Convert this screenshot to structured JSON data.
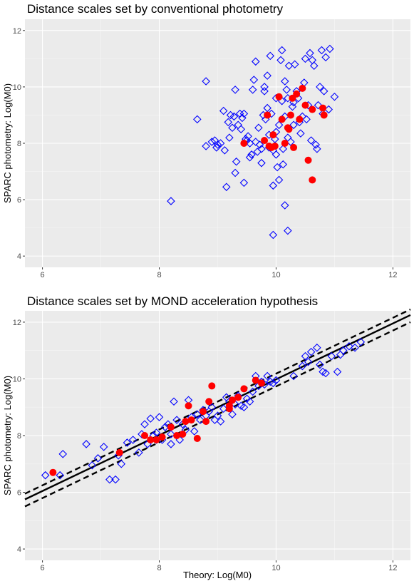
{
  "chart_data": [
    {
      "type": "scatter",
      "title": "Distance scales set by conventional photometry",
      "xlabel": "",
      "ylabel": "SPARC photometry:  Log(M0)",
      "xlim": [
        5.7,
        12.3
      ],
      "ylim": [
        3.6,
        12.4
      ],
      "x_ticks": [
        "6",
        "8",
        "10",
        "12"
      ],
      "y_ticks": [
        "4",
        "6",
        "8",
        "10",
        "12"
      ],
      "grid": true,
      "colors": {
        "diamond": "#0000ff",
        "dot": "#ff0000",
        "panel": "#ebebeb",
        "grid": "#ffffff"
      },
      "series": [
        {
          "marker": "open-diamond",
          "points": [
            [
              8.2,
              5.95
            ],
            [
              8.65,
              8.85
            ],
            [
              8.8,
              10.2
            ],
            [
              8.8,
              7.9
            ],
            [
              8.9,
              8.05
            ],
            [
              8.95,
              8.1
            ],
            [
              8.98,
              7.85
            ],
            [
              9.0,
              7.95
            ],
            [
              9.05,
              8.0
            ],
            [
              9.1,
              9.15
            ],
            [
              9.12,
              7.75
            ],
            [
              9.15,
              6.45
            ],
            [
              9.18,
              8.75
            ],
            [
              9.2,
              8.2
            ],
            [
              9.22,
              9.0
            ],
            [
              9.25,
              8.55
            ],
            [
              9.28,
              8.95
            ],
            [
              9.3,
              9.9
            ],
            [
              9.3,
              6.95
            ],
            [
              9.32,
              7.35
            ],
            [
              9.35,
              8.65
            ],
            [
              9.38,
              9.05
            ],
            [
              9.4,
              8.5
            ],
            [
              9.42,
              8.9
            ],
            [
              9.45,
              9.05
            ],
            [
              9.45,
              6.6
            ],
            [
              9.48,
              8.15
            ],
            [
              9.5,
              8.1
            ],
            [
              9.52,
              8.25
            ],
            [
              9.55,
              8.0
            ],
            [
              9.55,
              7.5
            ],
            [
              9.58,
              7.6
            ],
            [
              9.6,
              9.9
            ],
            [
              9.62,
              10.25
            ],
            [
              9.65,
              10.9
            ],
            [
              9.65,
              8.05
            ],
            [
              9.68,
              7.7
            ],
            [
              9.7,
              8.55
            ],
            [
              9.72,
              7.95
            ],
            [
              9.75,
              7.3
            ],
            [
              9.75,
              7.8
            ],
            [
              9.78,
              9.0
            ],
            [
              9.8,
              10.0
            ],
            [
              9.8,
              9.85
            ],
            [
              9.82,
              8.85
            ],
            [
              9.85,
              10.4
            ],
            [
              9.85,
              9.25
            ],
            [
              9.88,
              8.3
            ],
            [
              9.88,
              7.85
            ],
            [
              9.9,
              11.1
            ],
            [
              9.92,
              9.05
            ],
            [
              9.95,
              7.75
            ],
            [
              9.95,
              6.5
            ],
            [
              9.95,
              4.75
            ],
            [
              9.98,
              8.15
            ],
            [
              10.0,
              9.6
            ],
            [
              10.0,
              8.4
            ],
            [
              10.0,
              7.6
            ],
            [
              10.02,
              7.15
            ],
            [
              10.05,
              8.65
            ],
            [
              10.05,
              6.7
            ],
            [
              10.08,
              10.95
            ],
            [
              10.1,
              11.3
            ],
            [
              10.1,
              9.5
            ],
            [
              10.12,
              7.8
            ],
            [
              10.12,
              7.25
            ],
            [
              10.15,
              10.2
            ],
            [
              10.15,
              8.95
            ],
            [
              10.15,
              5.8
            ],
            [
              10.18,
              9.9
            ],
            [
              10.2,
              9.6
            ],
            [
              10.2,
              8.2
            ],
            [
              10.2,
              4.9
            ],
            [
              10.22,
              10.75
            ],
            [
              10.25,
              8.05
            ],
            [
              10.28,
              9.3
            ],
            [
              10.3,
              9.45
            ],
            [
              10.3,
              8.65
            ],
            [
              10.32,
              10.8
            ],
            [
              10.35,
              9.85
            ],
            [
              10.38,
              9.6
            ],
            [
              10.4,
              8.75
            ],
            [
              10.42,
              8.35
            ],
            [
              10.45,
              8.95
            ],
            [
              10.48,
              10.15
            ],
            [
              10.5,
              11.0
            ],
            [
              10.52,
              8.85
            ],
            [
              10.55,
              9.35
            ],
            [
              10.58,
              11.2
            ],
            [
              10.6,
              8.1
            ],
            [
              10.62,
              10.95
            ],
            [
              10.65,
              10.75
            ],
            [
              10.68,
              7.95
            ],
            [
              10.7,
              7.8
            ],
            [
              10.72,
              9.35
            ],
            [
              10.75,
              10.0
            ],
            [
              10.78,
              11.3
            ],
            [
              10.8,
              9.05
            ],
            [
              10.82,
              9.85
            ],
            [
              10.85,
              11.05
            ],
            [
              10.9,
              9.2
            ],
            [
              10.92,
              11.35
            ],
            [
              11.0,
              9.65
            ]
          ]
        },
        {
          "marker": "filled-dot",
          "points": [
            [
              9.45,
              8.0
            ],
            [
              9.8,
              8.1
            ],
            [
              9.85,
              9.0
            ],
            [
              9.88,
              7.9
            ],
            [
              9.92,
              7.85
            ],
            [
              9.95,
              8.3
            ],
            [
              9.98,
              7.9
            ],
            [
              10.05,
              9.65
            ],
            [
              10.1,
              8.85
            ],
            [
              10.15,
              8.0
            ],
            [
              10.2,
              8.55
            ],
            [
              10.22,
              8.5
            ],
            [
              10.25,
              9.0
            ],
            [
              10.28,
              9.6
            ],
            [
              10.3,
              7.85
            ],
            [
              10.35,
              9.75
            ],
            [
              10.4,
              8.85
            ],
            [
              10.45,
              9.95
            ],
            [
              10.5,
              9.35
            ],
            [
              10.55,
              7.4
            ],
            [
              10.62,
              9.2
            ],
            [
              10.62,
              6.7
            ],
            [
              10.8,
              9.25
            ],
            [
              10.82,
              9.0
            ]
          ]
        }
      ]
    },
    {
      "type": "scatter",
      "title": "Distance scales set by MOND acceleration hypothesis",
      "xlabel": "Theory:  Log(M0)",
      "ylabel": "SPARC photometry:  Log(M0)",
      "xlim": [
        5.7,
        12.3
      ],
      "ylim": [
        3.6,
        12.4
      ],
      "x_ticks": [
        "6",
        "8",
        "10",
        "12"
      ],
      "y_ticks": [
        "4",
        "6",
        "8",
        "10",
        "12"
      ],
      "grid": true,
      "colors": {
        "diamond": "#0000ff",
        "dot": "#ff0000",
        "line": "#000000",
        "panel": "#ebebeb",
        "grid": "#ffffff"
      },
      "lines": [
        {
          "style": "solid",
          "points": [
            [
              5.7,
              5.75
            ],
            [
              12.3,
              12.25
            ]
          ]
        },
        {
          "style": "dashed",
          "points": [
            [
              5.7,
              5.95
            ],
            [
              12.3,
              12.45
            ]
          ]
        },
        {
          "style": "dashed",
          "points": [
            [
              5.7,
              5.5
            ],
            [
              12.3,
              12.0
            ]
          ]
        }
      ],
      "series": [
        {
          "marker": "open-diamond",
          "points": [
            [
              6.05,
              6.6
            ],
            [
              6.3,
              6.6
            ],
            [
              6.35,
              7.35
            ],
            [
              6.75,
              7.7
            ],
            [
              6.85,
              6.95
            ],
            [
              6.95,
              7.2
            ],
            [
              7.05,
              7.6
            ],
            [
              7.15,
              6.45
            ],
            [
              7.25,
              6.45
            ],
            [
              7.3,
              7.3
            ],
            [
              7.35,
              7.0
            ],
            [
              7.45,
              7.75
            ],
            [
              7.55,
              7.85
            ],
            [
              7.65,
              7.4
            ],
            [
              7.7,
              8.05
            ],
            [
              7.75,
              8.4
            ],
            [
              7.8,
              7.7
            ],
            [
              7.85,
              8.6
            ],
            [
              7.9,
              8.0
            ],
            [
              7.95,
              8.1
            ],
            [
              7.95,
              7.85
            ],
            [
              8.0,
              8.65
            ],
            [
              8.05,
              7.85
            ],
            [
              8.1,
              8.3
            ],
            [
              8.15,
              8.4
            ],
            [
              8.2,
              8.05
            ],
            [
              8.2,
              7.7
            ],
            [
              8.25,
              9.2
            ],
            [
              8.3,
              8.55
            ],
            [
              8.35,
              7.85
            ],
            [
              8.4,
              8.4
            ],
            [
              8.45,
              8.2
            ],
            [
              8.5,
              9.25
            ],
            [
              8.55,
              8.65
            ],
            [
              8.6,
              8.15
            ],
            [
              8.65,
              8.75
            ],
            [
              8.7,
              8.55
            ],
            [
              8.75,
              8.9
            ],
            [
              8.8,
              8.7
            ],
            [
              8.85,
              8.85
            ],
            [
              8.9,
              9.0
            ],
            [
              8.95,
              8.55
            ],
            [
              9.0,
              8.7
            ],
            [
              9.05,
              8.5
            ],
            [
              9.1,
              8.95
            ],
            [
              9.15,
              9.35
            ],
            [
              9.2,
              9.2
            ],
            [
              9.25,
              8.75
            ],
            [
              9.3,
              9.1
            ],
            [
              9.35,
              9.4
            ],
            [
              9.4,
              9.05
            ],
            [
              9.45,
              9.0
            ],
            [
              9.5,
              9.3
            ],
            [
              9.55,
              9.2
            ],
            [
              9.6,
              9.55
            ],
            [
              9.65,
              10.1
            ],
            [
              9.7,
              9.75
            ],
            [
              9.75,
              9.9
            ],
            [
              9.8,
              9.8
            ],
            [
              9.85,
              10.1
            ],
            [
              9.9,
              9.9
            ],
            [
              9.95,
              9.85
            ],
            [
              10.0,
              9.95
            ],
            [
              10.3,
              10.1
            ],
            [
              10.45,
              10.45
            ],
            [
              10.5,
              10.8
            ],
            [
              10.55,
              10.6
            ],
            [
              10.6,
              10.95
            ],
            [
              10.7,
              11.1
            ],
            [
              10.75,
              10.5
            ],
            [
              10.8,
              10.25
            ],
            [
              10.85,
              10.2
            ],
            [
              10.95,
              10.8
            ],
            [
              11.05,
              10.25
            ],
            [
              11.1,
              10.85
            ],
            [
              11.15,
              11.0
            ],
            [
              11.25,
              11.15
            ],
            [
              11.35,
              11.1
            ],
            [
              11.45,
              11.3
            ]
          ]
        },
        {
          "marker": "filled-dot",
          "points": [
            [
              6.18,
              6.7
            ],
            [
              7.32,
              7.4
            ],
            [
              7.75,
              8.0
            ],
            [
              7.85,
              7.85
            ],
            [
              7.95,
              7.85
            ],
            [
              8.05,
              7.95
            ],
            [
              8.2,
              8.3
            ],
            [
              8.3,
              8.0
            ],
            [
              8.4,
              8.05
            ],
            [
              8.45,
              8.5
            ],
            [
              8.5,
              9.05
            ],
            [
              8.55,
              8.55
            ],
            [
              8.65,
              7.9
            ],
            [
              8.75,
              8.85
            ],
            [
              8.8,
              8.5
            ],
            [
              8.85,
              9.2
            ],
            [
              8.9,
              9.75
            ],
            [
              9.2,
              9.05
            ],
            [
              9.2,
              8.95
            ],
            [
              9.25,
              9.25
            ],
            [
              9.35,
              9.35
            ],
            [
              9.45,
              9.65
            ],
            [
              9.65,
              9.95
            ],
            [
              9.75,
              9.85
            ]
          ]
        }
      ]
    }
  ]
}
